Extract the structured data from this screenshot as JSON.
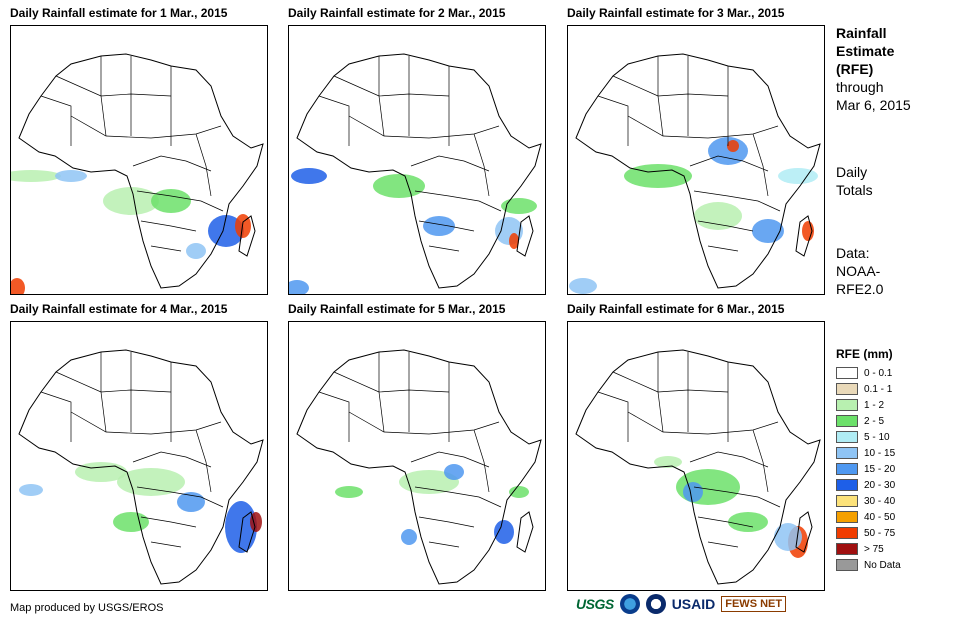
{
  "panels": [
    {
      "title": "Daily Rainfall estimate for 1 Mar., 2015"
    },
    {
      "title": "Daily Rainfall estimate for 2 Mar., 2015"
    },
    {
      "title": "Daily Rainfall estimate for 3 Mar., 2015"
    },
    {
      "title": "Daily Rainfall estimate for 4 Mar., 2015"
    },
    {
      "title": "Daily Rainfall estimate for 5 Mar., 2015"
    },
    {
      "title": "Daily Rainfall estimate for 6 Mar., 2015"
    }
  ],
  "sidebar": {
    "heading_1": "Rainfall",
    "heading_2": "Estimate",
    "heading_3": "(RFE)",
    "through": "through",
    "date": "Mar 6, 2015",
    "daily_1": "Daily",
    "daily_2": "Totals",
    "data_1": "Data:",
    "data_2": "NOAA-",
    "data_3": "RFE2.0"
  },
  "legend": {
    "title": "RFE (mm)",
    "items": [
      {
        "label": "0 - 0.1",
        "color": "#ffffff"
      },
      {
        "label": "0.1 - 1",
        "color": "#e9d9b9"
      },
      {
        "label": "1 - 2",
        "color": "#b8f0b0"
      },
      {
        "label": "2 - 5",
        "color": "#6ce06a"
      },
      {
        "label": "5 - 10",
        "color": "#b0ecf4"
      },
      {
        "label": "10 - 15",
        "color": "#8fc4f4"
      },
      {
        "label": "15 - 20",
        "color": "#4f98f0"
      },
      {
        "label": "20 - 30",
        "color": "#1e5fe8"
      },
      {
        "label": "30 - 40",
        "color": "#fce27a"
      },
      {
        "label": "40 - 50",
        "color": "#f5a000"
      },
      {
        "label": "50 - 75",
        "color": "#f03c00"
      },
      {
        "label": "> 75",
        "color": "#a01010"
      },
      {
        "label": "No Data",
        "color": "#999999"
      }
    ]
  },
  "footer": {
    "credit": "Map produced by USGS/EROS",
    "logo_usgs": "USGS",
    "logo_usaid": "USAID",
    "logo_fews": "FEWS NET"
  }
}
